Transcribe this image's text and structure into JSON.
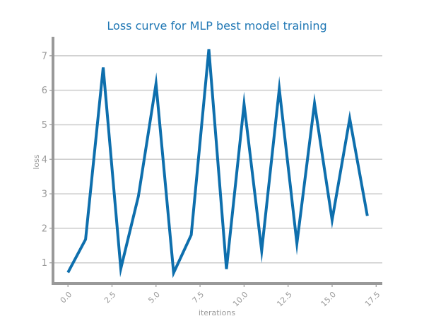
{
  "chart_data": {
    "type": "line",
    "title": "Loss curve for MLP best model training",
    "xlabel": "iterations",
    "ylabel": "loss",
    "xlim": [
      -0.85,
      17.85
    ],
    "ylim": [
      0.4,
      7.55
    ],
    "xticks": [
      0.0,
      2.5,
      5.0,
      7.5,
      10.0,
      12.5,
      15.0,
      17.5
    ],
    "xtick_labels": [
      "0.0",
      "2.5",
      "5.0",
      "7.5",
      "10.0",
      "12.5",
      "15.0",
      "17.5"
    ],
    "yticks": [
      1,
      2,
      3,
      4,
      5,
      6,
      7
    ],
    "ytick_labels": [
      "1",
      "2",
      "3",
      "4",
      "5",
      "6",
      "7"
    ],
    "grid": "horizontal",
    "legend": "none",
    "series": [
      {
        "x": [
          0,
          1,
          2,
          3,
          4,
          5,
          6,
          7,
          8,
          9,
          10,
          11,
          12,
          13,
          14,
          15,
          16,
          17
        ],
        "values": [
          0.72,
          1.68,
          6.66,
          0.83,
          2.93,
          6.19,
          0.71,
          1.81,
          7.19,
          0.82,
          5.6,
          1.35,
          6.04,
          1.56,
          5.62,
          2.24,
          5.18,
          2.36
        ]
      }
    ],
    "colors": {
      "line": "#0e6fad",
      "title": "#1f77b4",
      "axis": "#999999",
      "grid": "#cccccc",
      "tick_label": "#9a9a9a"
    }
  }
}
